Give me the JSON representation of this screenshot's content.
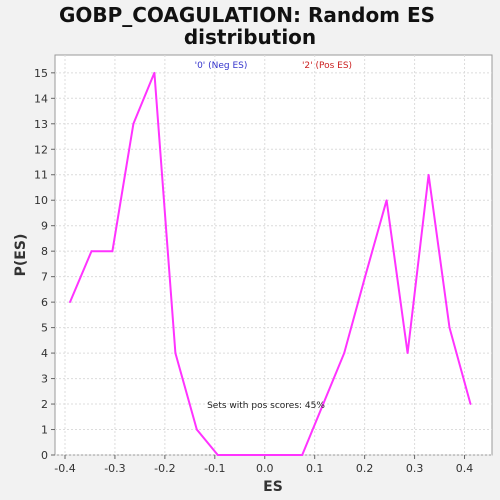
{
  "chart_data": {
    "type": "line",
    "title": "GOBP_COAGULATION: Random ES distribution",
    "title_lines": [
      "GOBP_COAGULATION: Random ES",
      "distribution"
    ],
    "xlabel": "ES",
    "ylabel": "P(ES)",
    "xlim": [
      -0.42,
      0.455
    ],
    "ylim": [
      0,
      15.7
    ],
    "x_ticks": [
      -0.4,
      -0.3,
      -0.2,
      -0.1,
      0.0,
      0.1,
      0.2,
      0.3,
      0.4
    ],
    "x_tick_labels": [
      "-0.4",
      "-0.3",
      "-0.2",
      "-0.1",
      "0.0",
      "0.1",
      "0.2",
      "0.3",
      "0.4"
    ],
    "y_ticks": [
      0,
      1,
      2,
      3,
      4,
      5,
      6,
      7,
      8,
      9,
      10,
      11,
      12,
      13,
      14,
      15
    ],
    "y_tick_labels": [
      "0",
      "1",
      "2",
      "3",
      "4",
      "5",
      "6",
      "7",
      "8",
      "9",
      "10",
      "11",
      "12",
      "13",
      "14",
      "15"
    ],
    "grid": true,
    "legend": [
      {
        "label": "'0' (Neg ES)",
        "color": "#3333cc"
      },
      {
        "label": "'2' (Pos ES)",
        "color": "#cc2222"
      }
    ],
    "annotation": "Sets with pos scores: 45%",
    "series": [
      {
        "color": "#ff33ff",
        "x": [
          -0.39,
          -0.347,
          -0.305,
          -0.263,
          -0.221,
          -0.179,
          -0.136,
          -0.094,
          -0.052,
          -0.01,
          0.032,
          0.075,
          0.117,
          0.159,
          0.201,
          0.244,
          0.286,
          0.328,
          0.37,
          0.412
        ],
        "y": [
          6,
          8,
          8,
          13,
          15,
          4,
          1,
          0,
          0,
          0,
          0,
          0,
          2,
          4,
          7,
          10,
          4,
          11,
          5,
          2
        ]
      }
    ]
  }
}
